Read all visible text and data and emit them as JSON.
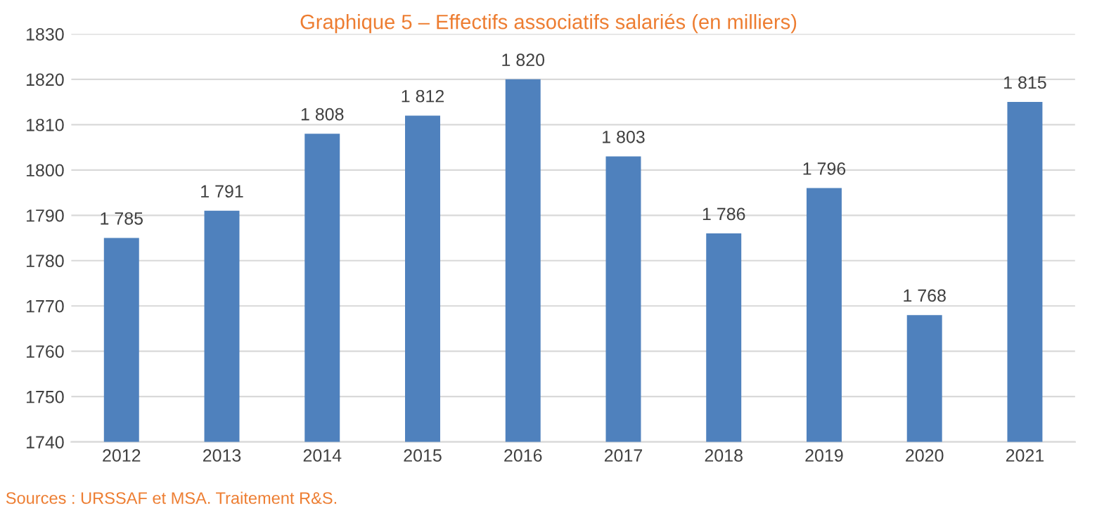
{
  "chart_data": {
    "type": "bar",
    "title": "Graphique 5 – Effectifs associatifs salariés (en milliers)",
    "categories": [
      "2012",
      "2013",
      "2014",
      "2015",
      "2016",
      "2017",
      "2018",
      "2019",
      "2020",
      "2021"
    ],
    "values": [
      1785,
      1791,
      1808,
      1812,
      1820,
      1803,
      1786,
      1796,
      1768,
      1815
    ],
    "value_labels": [
      "1 785",
      "1 791",
      "1 808",
      "1 812",
      "1 820",
      "1 803",
      "1 786",
      "1 796",
      "1 768",
      "1 815"
    ],
    "color": "#4f81bd",
    "ylim": [
      1740,
      1830
    ],
    "yticks": [
      1740,
      1750,
      1760,
      1770,
      1780,
      1790,
      1800,
      1810,
      1820,
      1830
    ],
    "grid": "y",
    "annotations": [
      "Sources : URSSAF et MSA. Traitement R&S."
    ]
  }
}
